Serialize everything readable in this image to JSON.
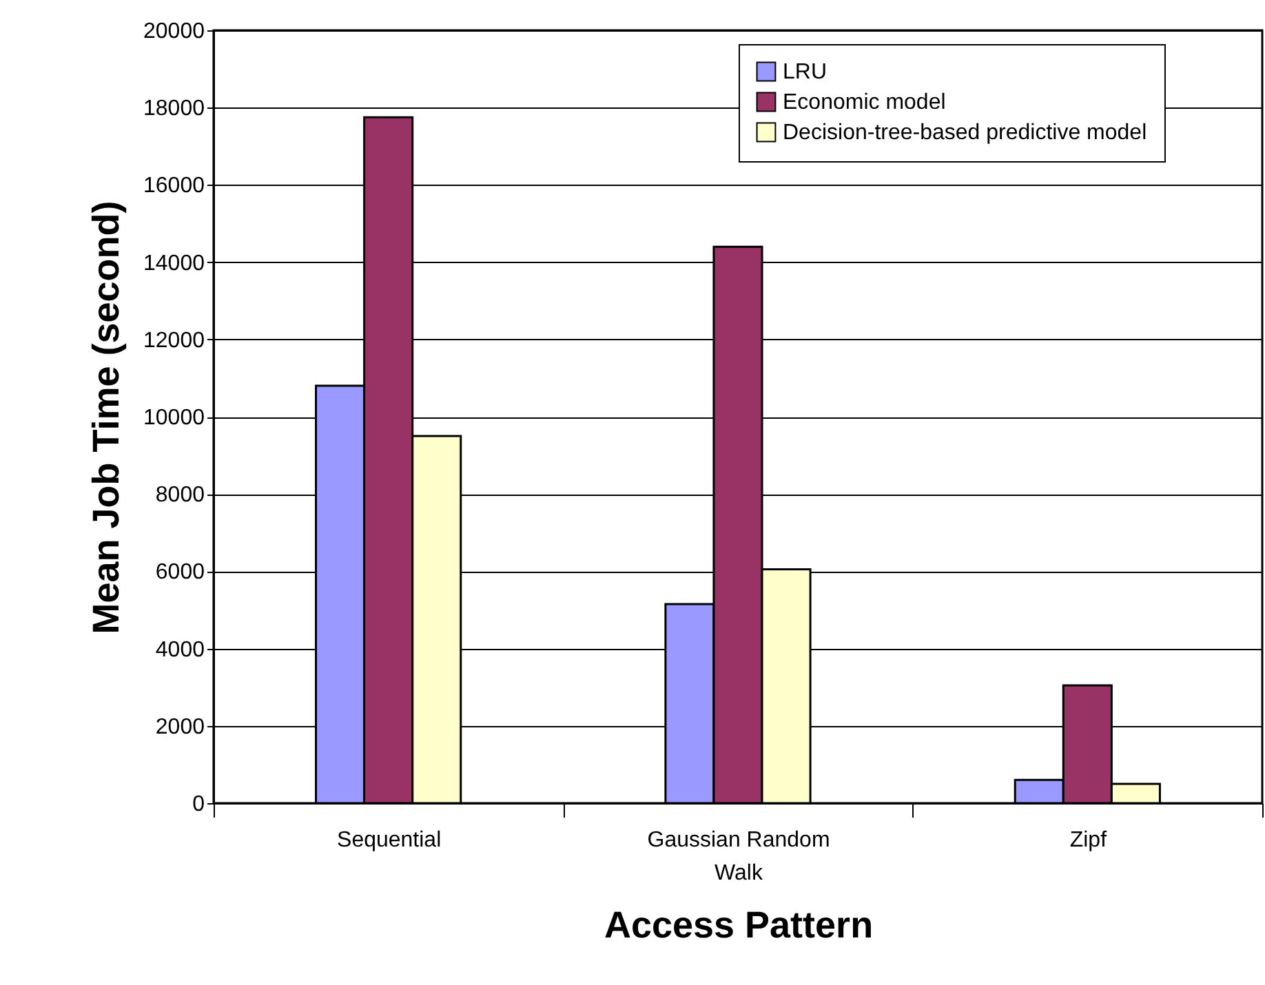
{
  "chart_data": {
    "type": "bar",
    "xlabel": "Access Pattern",
    "ylabel": "Mean Job Time (second)",
    "categories": [
      "Sequential",
      "Gaussian Random Walk",
      "Zipf"
    ],
    "series": [
      {
        "name": "LRU",
        "color": "#9999ff",
        "values": [
          10800,
          5150,
          600
        ]
      },
      {
        "name": "Economic model",
        "color": "#993366",
        "values": [
          17750,
          14400,
          3050
        ]
      },
      {
        "name": "Decision-tree-based predictive model",
        "color": "#ffffcc",
        "values": [
          9500,
          6050,
          500
        ]
      }
    ],
    "ylim": [
      0,
      20000
    ],
    "yticks": [
      0,
      2000,
      4000,
      6000,
      8000,
      10000,
      12000,
      14000,
      16000,
      18000,
      20000
    ],
    "grid": "y",
    "legend": "top right"
  }
}
